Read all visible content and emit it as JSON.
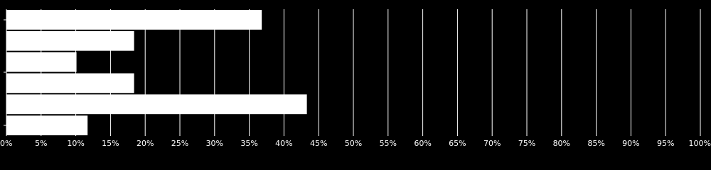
{
  "chart_data": {
    "type": "bar",
    "orientation": "horizontal",
    "categories": [
      null,
      null,
      null,
      null,
      null,
      null
    ],
    "values": [
      36.8,
      18.4,
      10.1,
      18.4,
      43.3,
      11.7
    ],
    "color": "#ffffff",
    "xlim": [
      0,
      100
    ],
    "xticks": [
      {
        "value": 0,
        "label": "0%"
      },
      {
        "value": 5,
        "label": "5%"
      },
      {
        "value": 10,
        "label": "10%"
      },
      {
        "value": 15,
        "label": "15%"
      },
      {
        "value": 20,
        "label": "20%"
      },
      {
        "value": 25,
        "label": "25%"
      },
      {
        "value": 30,
        "label": "30%"
      },
      {
        "value": 35,
        "label": "35%"
      },
      {
        "value": 40,
        "label": "40%"
      },
      {
        "value": 45,
        "label": "45%"
      },
      {
        "value": 50,
        "label": "50%"
      },
      {
        "value": 55,
        "label": "55%"
      },
      {
        "value": 60,
        "label": "60%"
      },
      {
        "value": 65,
        "label": "65%"
      },
      {
        "value": 70,
        "label": "70%"
      },
      {
        "value": 75,
        "label": "75%"
      },
      {
        "value": 80,
        "label": "80%"
      },
      {
        "value": 85,
        "label": "85%"
      },
      {
        "value": 90,
        "label": "90%"
      },
      {
        "value": 95,
        "label": "95%"
      },
      {
        "value": 100,
        "label": "100%"
      }
    ],
    "grid": true
  }
}
